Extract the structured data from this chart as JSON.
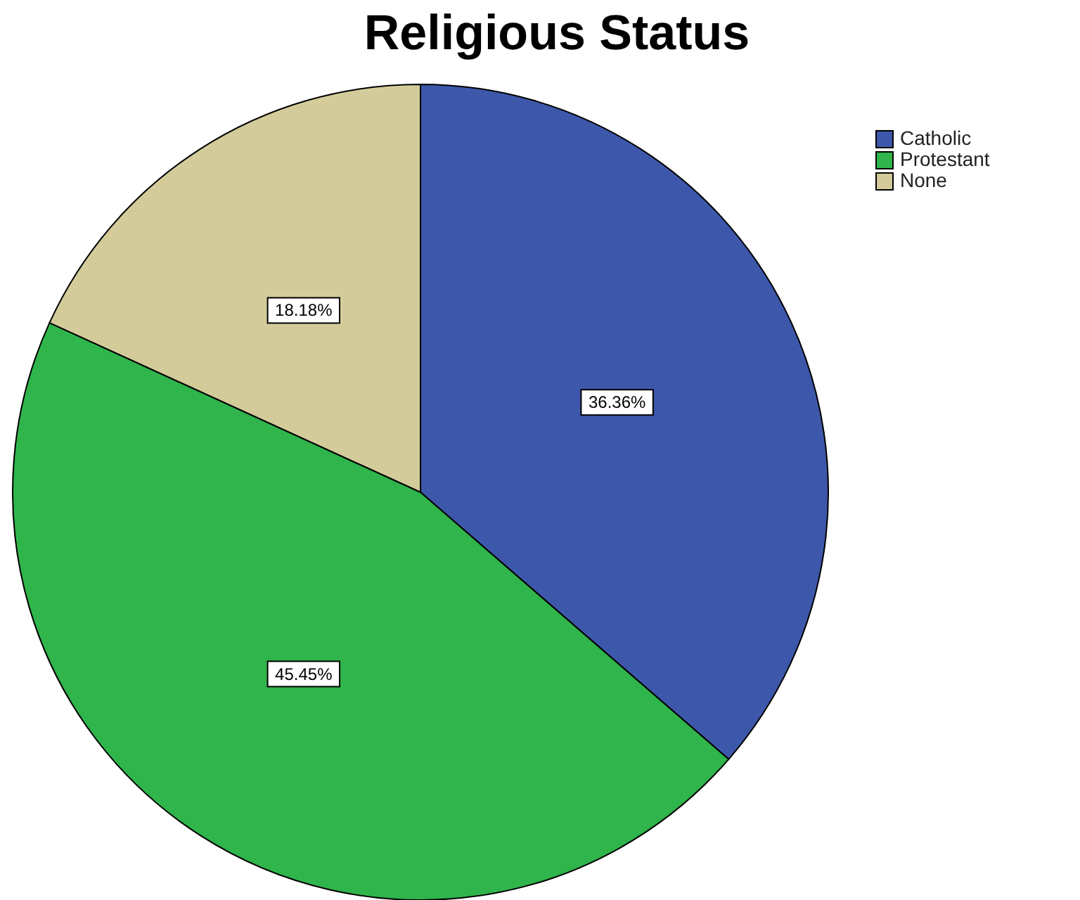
{
  "chart_data": {
    "type": "pie",
    "title": "Religious Status",
    "categories": [
      "Catholic",
      "Protestant",
      "None"
    ],
    "values": [
      36.36,
      45.45,
      18.18
    ],
    "colors": [
      "#3d58aa",
      "#2fb54b",
      "#d3cc9a"
    ],
    "value_labels": [
      "36.36%",
      "45.45%",
      "18.18%"
    ],
    "legend": "top right"
  }
}
